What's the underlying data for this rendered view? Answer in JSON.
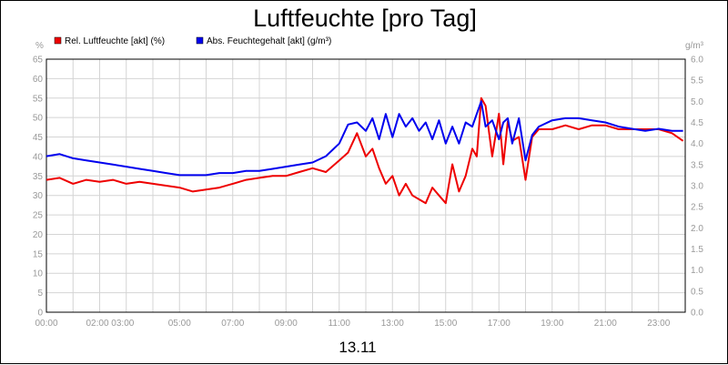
{
  "chart_data": {
    "type": "line",
    "title": "Luftfeuchte [pro Tag]",
    "xlabel": "13.11",
    "y_left_unit": "%",
    "y_right_unit": "g/m³",
    "x_range": [
      "00:00",
      "24:00"
    ],
    "x_ticks": [
      "00:00",
      "02:00 03:00",
      "05:00",
      "07:00",
      "09:00",
      "11:00",
      "13:00",
      "15:00",
      "17:00",
      "19:00",
      "21:00",
      "23:00"
    ],
    "y_left": {
      "range": [
        0,
        65
      ],
      "ticks": [
        "0",
        "5",
        "10",
        "15",
        "20",
        "25",
        "30",
        "35",
        "40",
        "45",
        "50",
        "55",
        "60",
        "65"
      ]
    },
    "y_right": {
      "range": [
        0,
        6
      ],
      "ticks": [
        "0.0",
        "0.5",
        "1.0",
        "1.5",
        "2.0",
        "2.5",
        "3.0",
        "3.5",
        "4.0",
        "4.5",
        "5.0",
        "5.5",
        "6.0"
      ]
    },
    "grid": true,
    "legend_position": "top-left",
    "series": [
      {
        "name": "Rel. Luftfeuchte [akt] (%)",
        "axis": "left",
        "color": "#ee0000",
        "x": [
          "00:00",
          "00:30",
          "01:00",
          "01:30",
          "02:00",
          "02:30",
          "03:00",
          "03:30",
          "04:00",
          "04:30",
          "05:00",
          "05:30",
          "06:00",
          "06:30",
          "07:00",
          "07:30",
          "08:00",
          "08:30",
          "09:00",
          "09:30",
          "10:00",
          "10:30",
          "11:00",
          "11:20",
          "11:40",
          "12:00",
          "12:15",
          "12:30",
          "12:45",
          "13:00",
          "13:15",
          "13:30",
          "13:45",
          "14:00",
          "14:15",
          "14:30",
          "14:45",
          "15:00",
          "15:15",
          "15:30",
          "15:45",
          "16:00",
          "16:10",
          "16:20",
          "16:30",
          "16:45",
          "17:00",
          "17:10",
          "17:20",
          "17:30",
          "17:45",
          "18:00",
          "18:15",
          "18:30",
          "19:00",
          "19:30",
          "20:00",
          "20:30",
          "21:00",
          "21:30",
          "22:00",
          "22:30",
          "23:00",
          "23:30",
          "23:55"
        ],
        "values": [
          34,
          34.5,
          33,
          34,
          33.5,
          34,
          33,
          33.5,
          33,
          32.5,
          32,
          31,
          31.5,
          32,
          33,
          34,
          34.5,
          35,
          35,
          36,
          37,
          36,
          39,
          41,
          46,
          40,
          42,
          37,
          33,
          35,
          30,
          33,
          30,
          29,
          28,
          32,
          30,
          28,
          38,
          31,
          35,
          42,
          40,
          55,
          53,
          40,
          51,
          38,
          49,
          44,
          45,
          34,
          45,
          47,
          47,
          48,
          47,
          48,
          48,
          47,
          47,
          47,
          47,
          46,
          44
        ]
      },
      {
        "name": "Abs. Feuchtegehalt [akt] (g/m³)",
        "axis": "right",
        "color": "#0000ee",
        "x": [
          "00:00",
          "00:30",
          "01:00",
          "01:30",
          "02:00",
          "02:30",
          "03:00",
          "03:30",
          "04:00",
          "04:30",
          "05:00",
          "05:30",
          "06:00",
          "06:30",
          "07:00",
          "07:30",
          "08:00",
          "08:30",
          "09:00",
          "09:30",
          "10:00",
          "10:30",
          "11:00",
          "11:20",
          "11:40",
          "12:00",
          "12:15",
          "12:30",
          "12:45",
          "13:00",
          "13:15",
          "13:30",
          "13:45",
          "14:00",
          "14:15",
          "14:30",
          "14:45",
          "15:00",
          "15:15",
          "15:30",
          "15:45",
          "16:00",
          "16:10",
          "16:20",
          "16:30",
          "16:45",
          "17:00",
          "17:10",
          "17:20",
          "17:30",
          "17:45",
          "18:00",
          "18:15",
          "18:30",
          "19:00",
          "19:30",
          "20:00",
          "20:30",
          "21:00",
          "21:30",
          "22:00",
          "22:30",
          "23:00",
          "23:30",
          "23:55"
        ],
        "values": [
          3.7,
          3.75,
          3.65,
          3.6,
          3.55,
          3.5,
          3.45,
          3.4,
          3.35,
          3.3,
          3.25,
          3.25,
          3.25,
          3.3,
          3.3,
          3.35,
          3.35,
          3.4,
          3.45,
          3.5,
          3.55,
          3.7,
          4.0,
          4.45,
          4.5,
          4.3,
          4.6,
          4.1,
          4.7,
          4.15,
          4.7,
          4.4,
          4.6,
          4.3,
          4.5,
          4.1,
          4.55,
          4.0,
          4.4,
          4.0,
          4.5,
          4.4,
          4.7,
          5.0,
          4.4,
          4.55,
          4.1,
          4.5,
          4.6,
          4.0,
          4.6,
          3.6,
          4.2,
          4.4,
          4.55,
          4.6,
          4.6,
          4.55,
          4.5,
          4.4,
          4.35,
          4.3,
          4.35,
          4.3,
          4.3
        ]
      }
    ]
  }
}
